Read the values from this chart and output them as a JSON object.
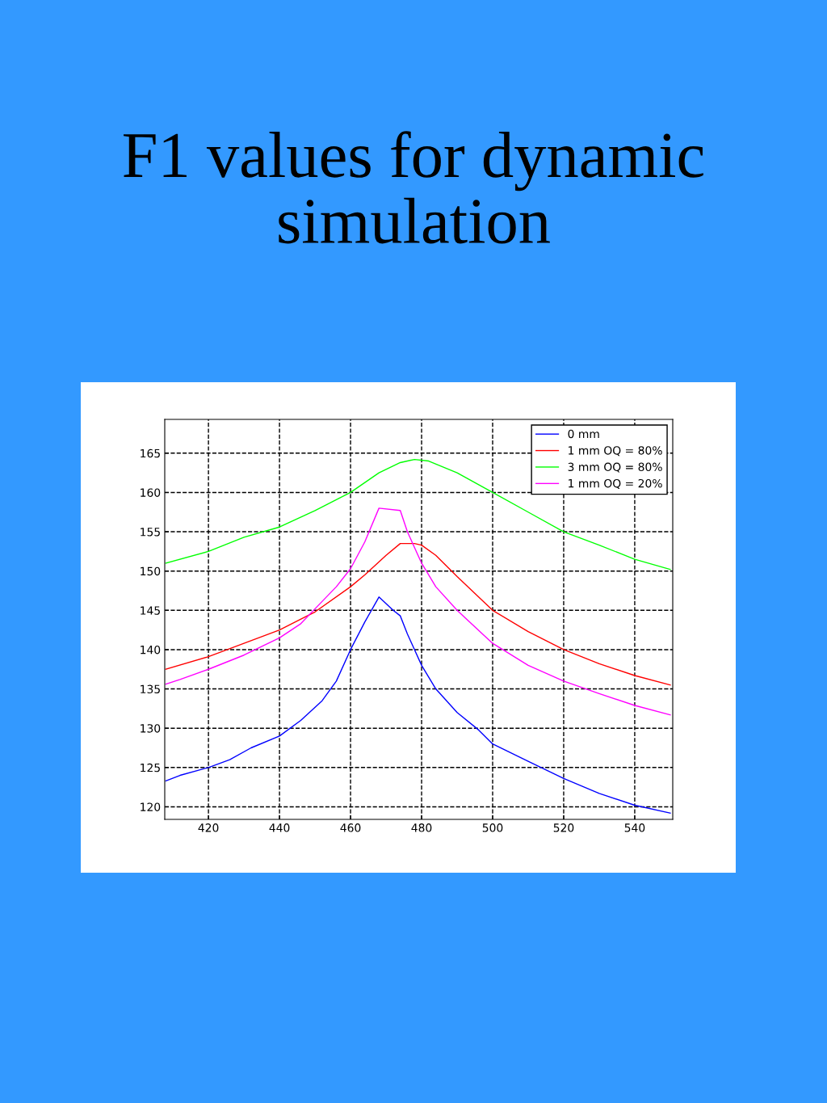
{
  "chart_data": {
    "type": "line",
    "title": "F1 values for dynamic simulation",
    "xlim": [
      407.7,
      550.7
    ],
    "ylim": [
      118.4,
      169.3
    ],
    "xticks": [
      420,
      440,
      460,
      480,
      500,
      520,
      540
    ],
    "yticks": [
      120,
      125,
      130,
      135,
      140,
      145,
      150,
      155,
      160,
      165
    ],
    "grid": true,
    "legend": "top right",
    "line_style": "solid",
    "series": [
      {
        "name": "0 mm",
        "color": "#0000ff",
        "x": [
          408,
          412,
          420,
          426,
          432,
          440,
          446,
          452,
          456,
          460,
          464,
          468,
          472,
          474,
          476,
          480,
          484,
          490,
          496,
          500,
          510,
          520,
          530,
          540,
          550
        ],
        "values": [
          123.3,
          124,
          125,
          126,
          127.5,
          129,
          131,
          133.5,
          136,
          140,
          143.5,
          146.7,
          145,
          144.3,
          142,
          138,
          135,
          132,
          129.8,
          128,
          125.8,
          123.6,
          121.7,
          120.2,
          119.2
        ]
      },
      {
        "name": "1 mm OQ = 80%",
        "color": "#ff0000",
        "x": [
          408,
          420,
          430,
          440,
          450,
          460,
          464,
          470,
          474,
          478,
          480,
          484,
          490,
          500,
          510,
          520,
          530,
          540,
          550
        ],
        "values": [
          137.5,
          139.1,
          140.8,
          142.5,
          144.8,
          148,
          149.5,
          152,
          153.5,
          153.5,
          153.3,
          152,
          149.3,
          145,
          142.3,
          140,
          138.2,
          136.7,
          135.5
        ]
      },
      {
        "name": "3 mm OQ = 80%",
        "color": "#00ff00",
        "x": [
          408,
          420,
          430,
          440,
          450,
          460,
          468,
          474,
          478,
          482,
          490,
          500,
          510,
          520,
          530,
          540,
          550
        ],
        "values": [
          151,
          152.5,
          154.3,
          155.6,
          157.7,
          160,
          162.5,
          163.8,
          164.2,
          164,
          162.5,
          160,
          157.5,
          155,
          153.3,
          151.5,
          150.2
        ]
      },
      {
        "name": "1 mm OQ = 20%",
        "color": "#ff00ff",
        "x": [
          408,
          412,
          420,
          430,
          440,
          446,
          450,
          456,
          460,
          464,
          468,
          474,
          476,
          478,
          480,
          484,
          490,
          500,
          510,
          520,
          530,
          540,
          550
        ],
        "values": [
          135.6,
          136.2,
          137.5,
          139.3,
          141.5,
          143.3,
          145.2,
          148,
          150.3,
          153.7,
          158,
          157.7,
          155,
          153,
          151,
          148,
          145,
          140.8,
          138,
          136,
          134.4,
          132.9,
          131.7
        ]
      }
    ]
  }
}
